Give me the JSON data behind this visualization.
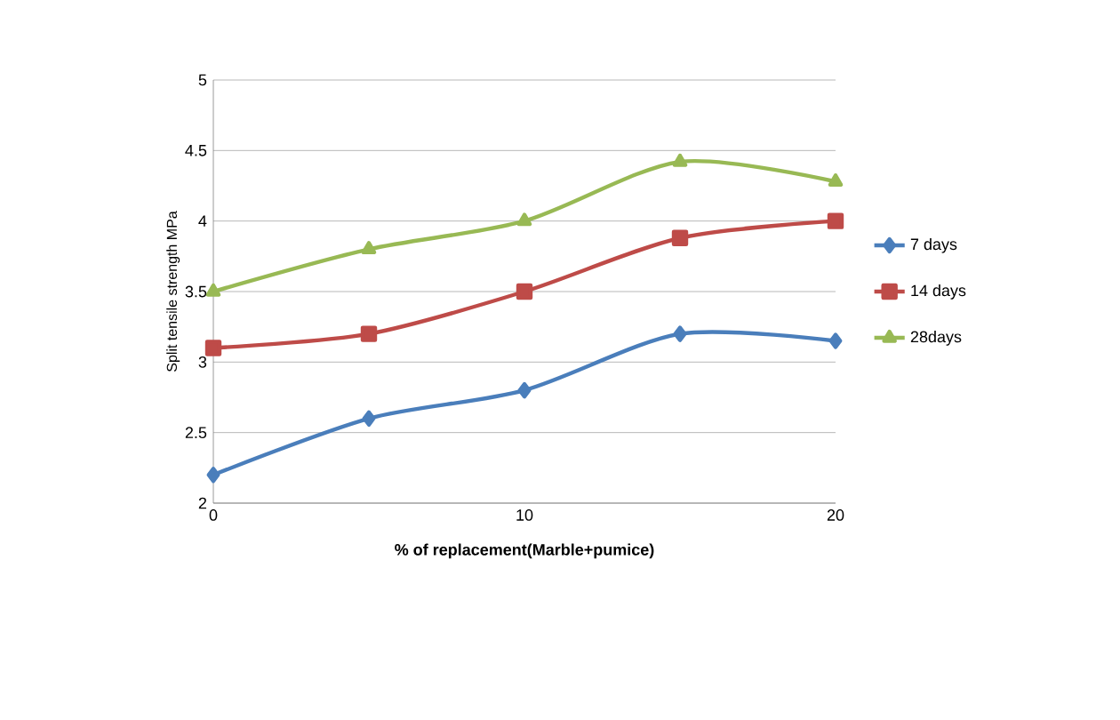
{
  "chart_data": {
    "type": "line",
    "xlabel": "% of replacement(Marble+pumice)",
    "ylabel": "Split tensile strength MPa",
    "x": [
      0,
      5,
      10,
      15,
      20
    ],
    "series": [
      {
        "name": "7 days",
        "color": "#4a7ebb",
        "marker": "diamond",
        "values": [
          2.2,
          2.6,
          2.8,
          3.2,
          3.15
        ]
      },
      {
        "name": "14 days",
        "color": "#be4b48",
        "marker": "square",
        "values": [
          3.1,
          3.2,
          3.5,
          3.88,
          4.0
        ]
      },
      {
        "name": "28days",
        "color": "#98b954",
        "marker": "triangle",
        "values": [
          3.5,
          3.8,
          4.0,
          4.42,
          4.28
        ]
      }
    ],
    "xlim": [
      0,
      20
    ],
    "xticks": [
      0,
      10,
      20
    ],
    "ylim": [
      2,
      5
    ],
    "yticks": [
      2,
      2.5,
      3,
      3.5,
      4,
      4.5,
      5
    ],
    "grid": "y",
    "legend": "right",
    "line_style": "solid"
  }
}
